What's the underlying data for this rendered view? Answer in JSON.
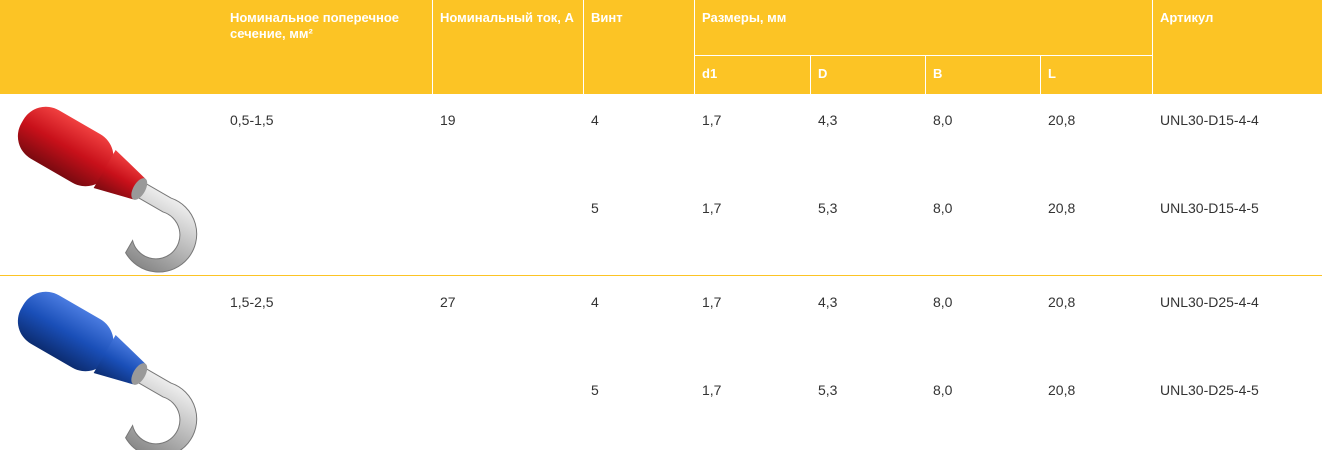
{
  "header": {
    "columns": [
      "Номинальное поперечное сечение, мм²",
      "Номинальный ток, А",
      "Винт",
      "Размеры, мм",
      "Артикул"
    ],
    "subcolumns": [
      "d1",
      "D",
      "B",
      "L"
    ]
  },
  "groups": [
    {
      "cross_section": "0,5-1,5",
      "current": "19",
      "rows": [
        [
          "4",
          "1,7",
          "4,3",
          "8,0",
          "20,8",
          "UNL30-D15-4-4"
        ],
        [
          "5",
          "1,7",
          "5,3",
          "8,0",
          "20,8",
          "UNL30-D15-4-5"
        ]
      ]
    },
    {
      "cross_section": "1,5-2,5",
      "current": "27",
      "rows": [
        [
          "4",
          "1,7",
          "4,3",
          "8,0",
          "20,8",
          "UNL30-D25-4-4"
        ],
        [
          "5",
          "1,7",
          "5,3",
          "8,0",
          "20,8",
          "UNL30-D25-4-5"
        ]
      ]
    }
  ]
}
